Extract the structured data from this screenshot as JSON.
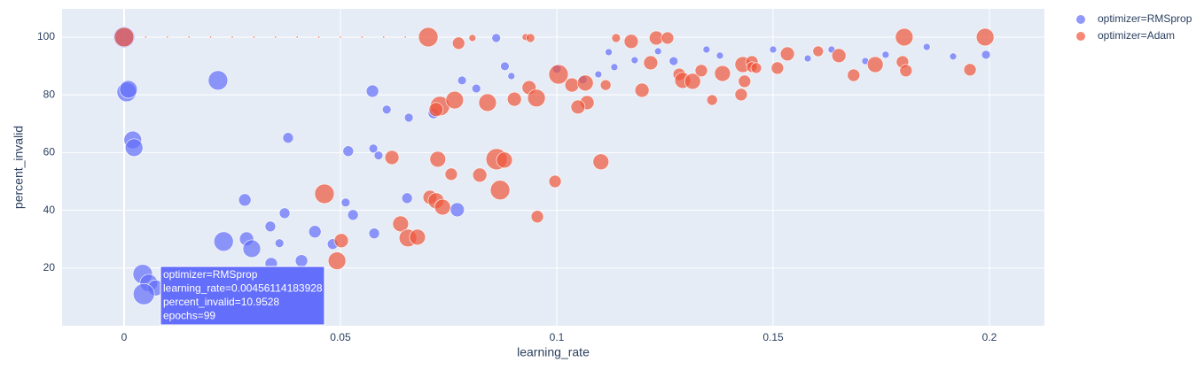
{
  "chart_data": {
    "type": "scatter",
    "x_label": "learning_rate",
    "y_label": "percent_invalid",
    "xlim": [
      -0.01434,
      0.2127
    ],
    "ylim": [
      0,
      109.8
    ],
    "xticks": [
      0,
      0.05,
      0.1,
      0.15,
      0.2
    ],
    "yticks": [
      20,
      40,
      60,
      80,
      100
    ],
    "grid": true,
    "legend": "right",
    "series": [
      {
        "name": "optimizer=RMSprop",
        "color": "#636efa",
        "x": [
          0,
          0.0006,
          0.001,
          0.002,
          0.0023,
          0.0217,
          0.023,
          0.0279,
          0.0283,
          0.0295,
          0.0338,
          0.034,
          0.0359,
          0.0371,
          0.0379,
          0.041,
          0.0414,
          0.0441,
          0.0482,
          0.0518,
          0.0512,
          0.0529,
          0.0574,
          0.0576,
          0.0578,
          0.0588,
          0.0607,
          0.0654,
          0.0658,
          0.0715,
          0.077,
          0.0781,
          0.0814,
          0.086,
          0.088,
          0.0895,
          0.1,
          0.106,
          0.1096,
          0.112,
          0.1133,
          0.118,
          0.1234,
          0.127,
          0.1346,
          0.1377,
          0.15,
          0.158,
          0.1635,
          0.1713,
          0.176,
          0.1855,
          0.1916,
          0.1992,
          0.0043,
          0.0057,
          0.0073,
          0.00456114183928
        ],
        "values": [
          100,
          81,
          81.9,
          64.4,
          61.7,
          85,
          29.2,
          43.6,
          30.1,
          26.7,
          34.4,
          21.5,
          28.6,
          39,
          65.1,
          22.5,
          17.9,
          32.6,
          28.3,
          60.5,
          42.7,
          38.4,
          81.3,
          61.4,
          32,
          59,
          74.9,
          44.2,
          72.1,
          73.6,
          40.2,
          85,
          82.2,
          99.7,
          89.9,
          86.5,
          89,
          85.3,
          87.1,
          94.8,
          89.6,
          92,
          95.1,
          91.7,
          95.7,
          93.6,
          95.7,
          92.6,
          95.7,
          91.7,
          93.9,
          96.6,
          93.3,
          93.9,
          17.9,
          14.8,
          13.1,
          10.9528
        ],
        "sizes": [
          100,
          84,
          69,
          69,
          69,
          84,
          84,
          34,
          44,
          69,
          25,
          34,
          17,
          25,
          25,
          34,
          17,
          34,
          25,
          25,
          17,
          25,
          34,
          17,
          25,
          17,
          17,
          25,
          17,
          25,
          44,
          17,
          17,
          17,
          17,
          11,
          17,
          17,
          11,
          11,
          11,
          11,
          11,
          17,
          11,
          11,
          11,
          11,
          11,
          11,
          11,
          11,
          11,
          17,
          84,
          69,
          56,
          99
        ]
      },
      {
        "name": "optimizer=Adam",
        "color": "#EF553B",
        "x": [
          0.005,
          0.01,
          0.015,
          0.02,
          0.025,
          0.03,
          0.035,
          0.04,
          0.045,
          0.05,
          0.055,
          0.06,
          0.065,
          0,
          0.0703,
          0.0773,
          0.0805,
          0.0928,
          0.0939,
          0.1137,
          0.1172,
          0.123,
          0.1256,
          0.1803,
          0.199,
          0.1004,
          0.1035,
          0.1066,
          0.107,
          0.1049,
          0.1113,
          0.1197,
          0.1217,
          0.1283,
          0.1291,
          0.1314,
          0.1334,
          0.1359,
          0.1383,
          0.1426,
          0.1434,
          0.143,
          0.1451,
          0.1451,
          0.1461,
          0.151,
          0.1533,
          0.1604,
          0.1652,
          0.1686,
          0.1736,
          0.1799,
          0.1807,
          0.1955,
          0.073,
          0.0721,
          0.0764,
          0.084,
          0.0902,
          0.0936,
          0.0953,
          0.0619,
          0.0725,
          0.0756,
          0.0822,
          0.0861,
          0.0879,
          0.0869,
          0.1102,
          0.0996,
          0.0463,
          0.0707,
          0.0721,
          0.0736,
          0.0639,
          0.0656,
          0.0678,
          0.0502,
          0.0492,
          0.0955
        ],
        "values": [
          100,
          100,
          100,
          100,
          100,
          100,
          100,
          100,
          100,
          100,
          100,
          100,
          100,
          100,
          100,
          97.9,
          99.7,
          100,
          99.7,
          99.7,
          98.5,
          99.7,
          99.7,
          100,
          100,
          87.1,
          83.4,
          84.1,
          77.3,
          75.8,
          83.4,
          81.6,
          91.1,
          87.1,
          85,
          84.7,
          88.4,
          78.2,
          87.4,
          80.1,
          84.7,
          90.5,
          91.4,
          89.6,
          89.3,
          89.3,
          94.2,
          95.1,
          93.6,
          86.8,
          90.5,
          91.4,
          88.4,
          88.7,
          76.1,
          74.9,
          78.2,
          77.3,
          78.5,
          82.5,
          78.9,
          58.3,
          57.7,
          52.5,
          52.2,
          57.7,
          57.4,
          47,
          56.8,
          50,
          45.7,
          44.5,
          43.3,
          41.1,
          35.3,
          30.4,
          30.7,
          29.5,
          22.5,
          37.8
        ],
        "sizes": [
          1,
          1,
          1,
          1,
          1,
          1,
          1,
          1,
          1,
          1,
          1,
          1,
          1,
          84,
          84,
          34,
          11,
          11,
          17,
          17,
          44,
          44,
          34,
          69,
          69,
          84,
          44,
          56,
          44,
          44,
          25,
          44,
          44,
          34,
          56,
          56,
          34,
          25,
          56,
          34,
          34,
          56,
          34,
          25,
          25,
          34,
          44,
          25,
          44,
          34,
          56,
          34,
          34,
          34,
          84,
          44,
          69,
          69,
          44,
          44,
          69,
          44,
          56,
          34,
          44,
          100,
          56,
          84,
          56,
          34,
          84,
          44,
          56,
          56,
          56,
          69,
          56,
          44,
          69,
          34
        ]
      }
    ],
    "tooltip": [
      "optimizer=RMSprop",
      "learning_rate=0.00456114183928",
      "percent_invalid=10.9528",
      "epochs=99"
    ]
  }
}
